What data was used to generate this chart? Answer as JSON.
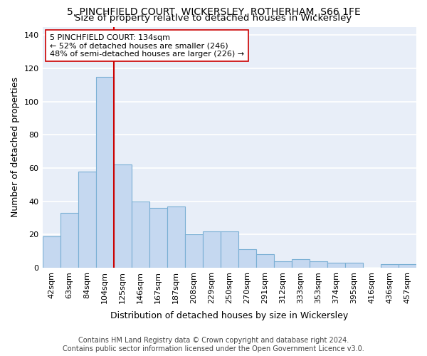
{
  "title_line1": "5, PINCHFIELD COURT, WICKERSLEY, ROTHERHAM, S66 1FE",
  "title_line2": "Size of property relative to detached houses in Wickersley",
  "xlabel": "Distribution of detached houses by size in Wickersley",
  "ylabel": "Number of detached properties",
  "categories": [
    "42sqm",
    "63sqm",
    "84sqm",
    "104sqm",
    "125sqm",
    "146sqm",
    "167sqm",
    "187sqm",
    "208sqm",
    "229sqm",
    "250sqm",
    "270sqm",
    "291sqm",
    "312sqm",
    "333sqm",
    "353sqm",
    "374sqm",
    "395sqm",
    "416sqm",
    "436sqm",
    "457sqm"
  ],
  "values": [
    19,
    33,
    58,
    115,
    62,
    40,
    36,
    37,
    20,
    22,
    22,
    11,
    8,
    4,
    5,
    4,
    3,
    3,
    0,
    2,
    2
  ],
  "bar_color": "#c5d8f0",
  "bar_edgecolor": "#7aafd4",
  "vline_color": "#cc0000",
  "annotation_text": "5 PINCHFIELD COURT: 134sqm\n← 52% of detached houses are smaller (246)\n48% of semi-detached houses are larger (226) →",
  "annotation_box_color": "#ffffff",
  "annotation_box_edgecolor": "#cc0000",
  "ylim": [
    0,
    145
  ],
  "yticks": [
    0,
    20,
    40,
    60,
    80,
    100,
    120,
    140
  ],
  "footer_line1": "Contains HM Land Registry data © Crown copyright and database right 2024.",
  "footer_line2": "Contains public sector information licensed under the Open Government Licence v3.0.",
  "background_color": "#e8eef8",
  "grid_color": "#ffffff",
  "title_fontsize": 10,
  "subtitle_fontsize": 9.5,
  "axis_label_fontsize": 9,
  "tick_fontsize": 8,
  "annotation_fontsize": 8,
  "footer_fontsize": 7
}
